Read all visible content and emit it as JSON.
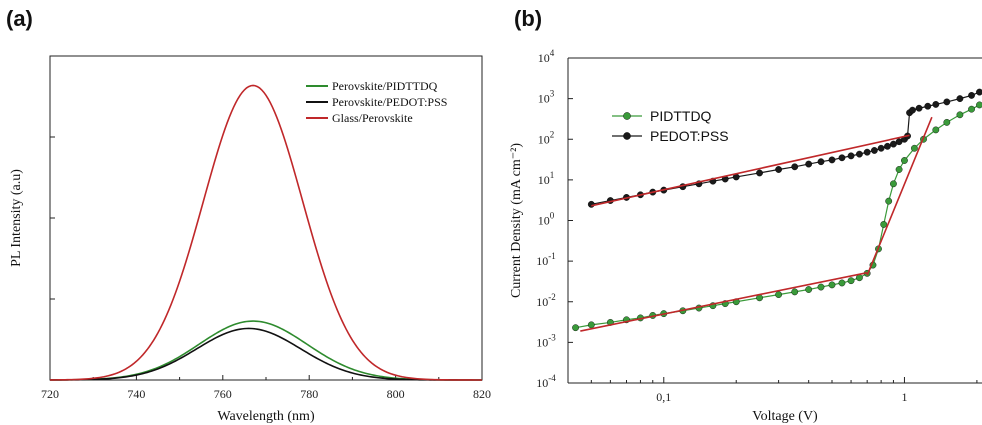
{
  "panels": {
    "a_label": "(a)",
    "b_label": "(b)"
  },
  "chart_data": [
    {
      "type": "line",
      "title": "",
      "xlabel": "Wavelength (nm)",
      "ylabel": "PL Intensity (a.u)",
      "xlim": [
        720,
        820
      ],
      "ylim": [
        0,
        1.1
      ],
      "x_ticks": [
        720,
        740,
        760,
        780,
        800,
        820
      ],
      "y_tick_labels_shown": false,
      "legend_position": "top-right",
      "series": [
        {
          "name": "Perovskite/PIDTTDQ",
          "color": "#2e8b2e",
          "peak_x": 767,
          "peak_y": 0.2,
          "width": 12.5
        },
        {
          "name": "Perovskite/PEDOT:PSS",
          "color": "#111111",
          "peak_x": 766,
          "peak_y": 0.175,
          "width": 12.0
        },
        {
          "name": "Glass/Perovskite",
          "color": "#c0282a",
          "peak_x": 767,
          "peak_y": 1.0,
          "width": 11.5
        }
      ]
    },
    {
      "type": "scatter",
      "title": "",
      "xlabel": "Voltage (V)",
      "ylabel": "Current Density (mA cm⁻²)",
      "x_scale": "log",
      "y_scale": "log",
      "xlim": [
        0.04,
        2.1
      ],
      "ylim": [
        0.0001,
        10000
      ],
      "x_ticks": [
        {
          "v": 0.1,
          "label": "0,1"
        },
        {
          "v": 1,
          "label": "1"
        }
      ],
      "y_ticks": [
        {
          "v": 0.0001,
          "base": "10",
          "exp": "-4"
        },
        {
          "v": 0.001,
          "base": "10",
          "exp": "-3"
        },
        {
          "v": 0.01,
          "base": "10",
          "exp": "-2"
        },
        {
          "v": 0.1,
          "base": "10",
          "exp": "-1"
        },
        {
          "v": 1,
          "base": "10",
          "exp": "0"
        },
        {
          "v": 10,
          "base": "10",
          "exp": "1"
        },
        {
          "v": 100,
          "base": "10",
          "exp": "2"
        },
        {
          "v": 1000,
          "base": "10",
          "exp": "3"
        },
        {
          "v": 10000,
          "base": "10",
          "exp": "4"
        }
      ],
      "legend_position": "top-left",
      "series": [
        {
          "name": "PIDTTDQ",
          "color": "#3a9a3a",
          "points": [
            [
              0.043,
              0.0023
            ],
            [
              0.05,
              0.0027
            ],
            [
              0.06,
              0.0031
            ],
            [
              0.07,
              0.0036
            ],
            [
              0.08,
              0.004
            ],
            [
              0.09,
              0.0046
            ],
            [
              0.1,
              0.0051
            ],
            [
              0.12,
              0.006
            ],
            [
              0.14,
              0.007
            ],
            [
              0.16,
              0.008
            ],
            [
              0.18,
              0.009
            ],
            [
              0.2,
              0.01
            ],
            [
              0.25,
              0.0125
            ],
            [
              0.3,
              0.015
            ],
            [
              0.35,
              0.0175
            ],
            [
              0.4,
              0.02
            ],
            [
              0.45,
              0.023
            ],
            [
              0.5,
              0.026
            ],
            [
              0.55,
              0.029
            ],
            [
              0.6,
              0.033
            ],
            [
              0.65,
              0.039
            ],
            [
              0.7,
              0.05
            ],
            [
              0.74,
              0.08
            ],
            [
              0.78,
              0.2
            ],
            [
              0.82,
              0.8
            ],
            [
              0.86,
              3.0
            ],
            [
              0.9,
              8.0
            ],
            [
              0.95,
              18.0
            ],
            [
              1.0,
              30.0
            ],
            [
              1.1,
              60.0
            ],
            [
              1.2,
              100.0
            ],
            [
              1.35,
              170.0
            ],
            [
              1.5,
              260.0
            ],
            [
              1.7,
              400.0
            ],
            [
              1.9,
              550.0
            ],
            [
              2.05,
              700.0
            ]
          ]
        },
        {
          "name": "PEDOT:PSS",
          "color": "#1a1a1a",
          "points": [
            [
              0.05,
              2.5
            ],
            [
              0.06,
              3.1
            ],
            [
              0.07,
              3.7
            ],
            [
              0.08,
              4.3
            ],
            [
              0.09,
              5.0
            ],
            [
              0.1,
              5.6
            ],
            [
              0.12,
              6.8
            ],
            [
              0.14,
              8.0
            ],
            [
              0.16,
              9.3
            ],
            [
              0.18,
              10.5
            ],
            [
              0.2,
              11.8
            ],
            [
              0.25,
              14.8
            ],
            [
              0.3,
              18.0
            ],
            [
              0.35,
              21.0
            ],
            [
              0.4,
              24.5
            ],
            [
              0.45,
              28.0
            ],
            [
              0.5,
              31.0
            ],
            [
              0.55,
              35.0
            ],
            [
              0.6,
              39.0
            ],
            [
              0.65,
              43.0
            ],
            [
              0.7,
              48.0
            ],
            [
              0.75,
              53.0
            ],
            [
              0.8,
              60.0
            ],
            [
              0.85,
              67.0
            ],
            [
              0.9,
              76.0
            ],
            [
              0.95,
              87.0
            ],
            [
              1.0,
              100.0
            ],
            [
              1.03,
              120.0
            ],
            [
              1.05,
              450.0
            ],
            [
              1.08,
              520.0
            ],
            [
              1.15,
              580.0
            ],
            [
              1.25,
              650.0
            ],
            [
              1.35,
              720.0
            ],
            [
              1.5,
              830.0
            ],
            [
              1.7,
              1000.0
            ],
            [
              1.9,
              1200.0
            ],
            [
              2.05,
              1450.0
            ]
          ]
        }
      ],
      "fit_lines": [
        {
          "color": "#c0282a",
          "points": [
            [
              0.045,
              0.0019
            ],
            [
              0.7,
              0.052
            ]
          ]
        },
        {
          "color": "#c0282a",
          "points": [
            [
              0.7,
              0.045
            ],
            [
              1.3,
              350.0
            ]
          ]
        },
        {
          "color": "#c0282a",
          "points": [
            [
              0.05,
              2.3
            ],
            [
              1.05,
              125.0
            ]
          ]
        }
      ]
    }
  ]
}
